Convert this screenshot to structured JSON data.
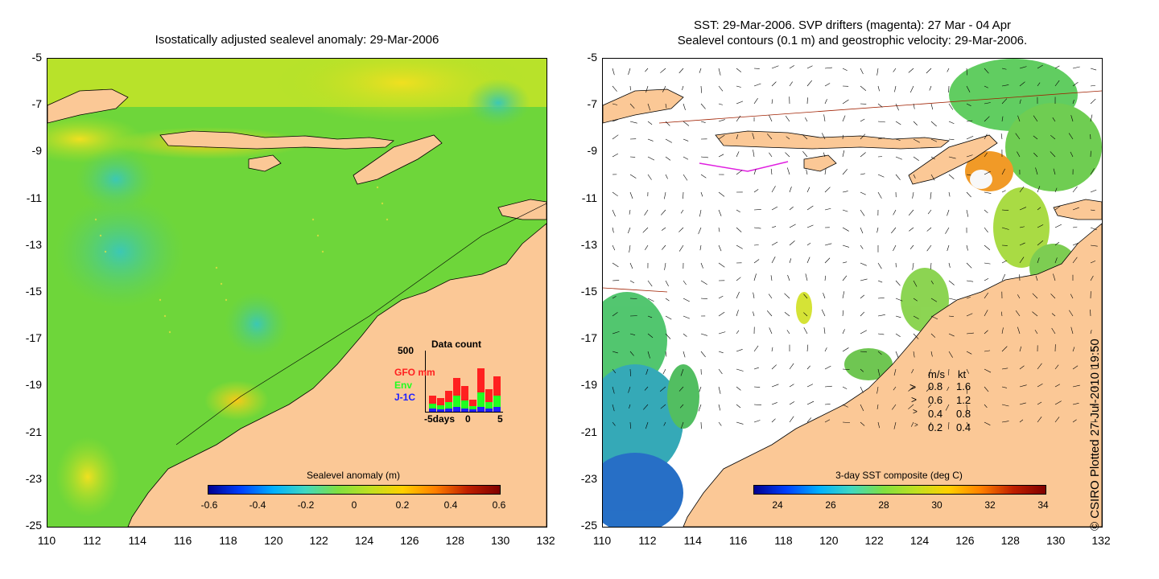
{
  "left_panel": {
    "title": "Isostatically adjusted sealevel anomaly: 29-Mar-2006",
    "colorbar": {
      "title": "Sealevel anomaly (m)",
      "labels": [
        "-0.6",
        "-0.4",
        "-0.2",
        "0",
        "0.2",
        "0.4",
        "0.6"
      ]
    },
    "data_count": {
      "title": "Data count",
      "max_label": "500",
      "series": [
        "GFO mm",
        "Env",
        "J-1C"
      ],
      "series_colors": [
        "#ff2020",
        "#20ff20",
        "#2020ff"
      ],
      "x_labels": [
        "-5days",
        "0",
        "5"
      ]
    }
  },
  "right_panel": {
    "title_line1": "SST: 29-Mar-2006. SVP drifters (magenta): 27 Mar - 04 Apr",
    "title_line2": "Sealevel contours (0.1 m) and geostrophic velocity: 29-Mar-2006.",
    "colorbar": {
      "title": "3-day SST composite (deg C)",
      "labels": [
        "24",
        "26",
        "28",
        "30",
        "32",
        "34"
      ]
    },
    "velocity_legend": {
      "header_ms": "m/s",
      "header_kt": "kt",
      "rows": [
        {
          "ms": "0.8",
          "kt": "1.6"
        },
        {
          "ms": "0.6",
          "kt": "1.2"
        },
        {
          "ms": "0.4",
          "kt": "0.8"
        },
        {
          "ms": "0.2",
          "kt": "0.4"
        }
      ]
    },
    "copyright": "© CSIRO Plotted 27-Jul-2010 19:50"
  },
  "axes": {
    "y_labels": [
      "-5",
      "-7",
      "-9",
      "-11",
      "-13",
      "-15",
      "-17",
      "-19",
      "-21",
      "-23",
      "-25"
    ],
    "x_labels": [
      "110",
      "112",
      "114",
      "116",
      "118",
      "120",
      "122",
      "124",
      "126",
      "128",
      "130",
      "132"
    ]
  },
  "colors": {
    "land": "#fbc896",
    "sea_green": "#7cd834",
    "sea_yellow": "#e6e61e",
    "sea_cyan": "#3cc8a0"
  }
}
